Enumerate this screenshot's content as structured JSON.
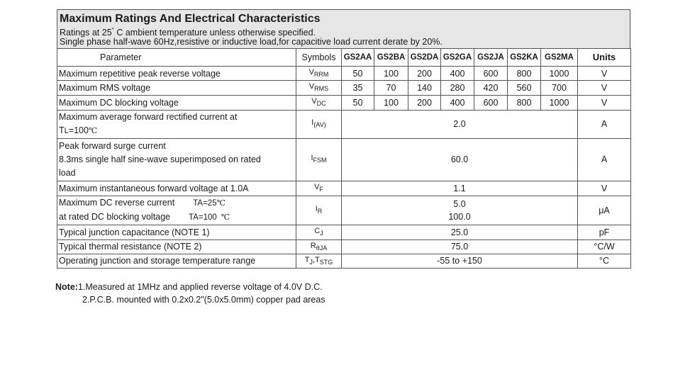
{
  "header": {
    "title": "Maximum Ratings And Electrical Characteristics",
    "line1_pre": "Ratings at 25",
    "line1_sup": "°",
    "line1_post": " C ambient temperature unless otherwise specified.",
    "line2": "Single phase half-wave 60Hz,resistive or inductive load,for capacitive load current derate by 20%."
  },
  "columns": {
    "parameter": "Parameter",
    "symbols": "Symbols",
    "parts": [
      "GS2AA",
      "GS2BA",
      "GS2DA",
      "GS2GA",
      "GS2JA",
      "GS2KA",
      "GS2MA"
    ],
    "units": "Units"
  },
  "rows": [
    {
      "param": "Maximum repetitive peak reverse voltage",
      "sym_main": "V",
      "sym_sub": "RRM",
      "values": [
        "50",
        "100",
        "200",
        "400",
        "600",
        "800",
        "1000"
      ],
      "unit": "V"
    },
    {
      "param": "Maximum RMS voltage",
      "sym_main": "V",
      "sym_sub": "RMS",
      "values": [
        "35",
        "70",
        "140",
        "280",
        "420",
        "560",
        "700"
      ],
      "unit": "V"
    },
    {
      "param": "Maximum DC blocking voltage",
      "sym_main": "V",
      "sym_sub": "DC",
      "values": [
        "50",
        "100",
        "200",
        "400",
        "600",
        "800",
        "1000"
      ],
      "unit": "V"
    },
    {
      "param_l1": "Maximum average forward rectified current at",
      "param_l2_a": "T",
      "param_l2_b": "L",
      "param_l2_c": "=100",
      "param_l2_d": "℃",
      "sym_main": "I",
      "sym_sub": "(AV)",
      "value": "2.0",
      "unit": "A"
    },
    {
      "param_l1": "Peak forward surge current",
      "param_l2": "8.3ms single half sine-wave superimposed on rated",
      "param_l3": "load",
      "sym_main": "I",
      "sym_sub": "FSM",
      "value": "60.0",
      "unit": "A"
    },
    {
      "param": "Maximum instantaneous forward voltage at 1.0A",
      "sym_main": "V",
      "sym_sub": "F",
      "value": "1.1",
      "unit": "V"
    },
    {
      "param_l1": "Maximum DC reverse current",
      "cond1": "TA=25",
      "cond1_deg": "℃",
      "param_l2": "at rated DC blocking voltage",
      "cond2": "TA=100",
      "cond2_deg": "℃",
      "sym_main": "I",
      "sym_sub": "R",
      "value1": "5.0",
      "value2": "100.0",
      "unit": "μA"
    },
    {
      "param": "Typical junction capacitance (NOTE 1)",
      "sym_main": "C",
      "sym_sub": "J",
      "value": "25.0",
      "unit": "pF"
    },
    {
      "param": "Typical thermal resistance (NOTE 2)",
      "sym_main": "R",
      "sym_sub": "θJA",
      "value": "75.0",
      "unit": "°C/W"
    },
    {
      "param": "Operating junction and storage temperature range",
      "sym_main": "T",
      "sym_sub": "J",
      "sym_main2": ",T",
      "sym_sub2": "STG",
      "value": "-55 to +150",
      "unit": "°C"
    }
  ],
  "notes": {
    "label": "Note:",
    "note1": "1.Measured at 1MHz and applied reverse voltage of 4.0V D.C.",
    "note2": "2.P.C.B. mounted with 0.2x0.2\"(5.0x5.0mm) copper pad areas"
  }
}
